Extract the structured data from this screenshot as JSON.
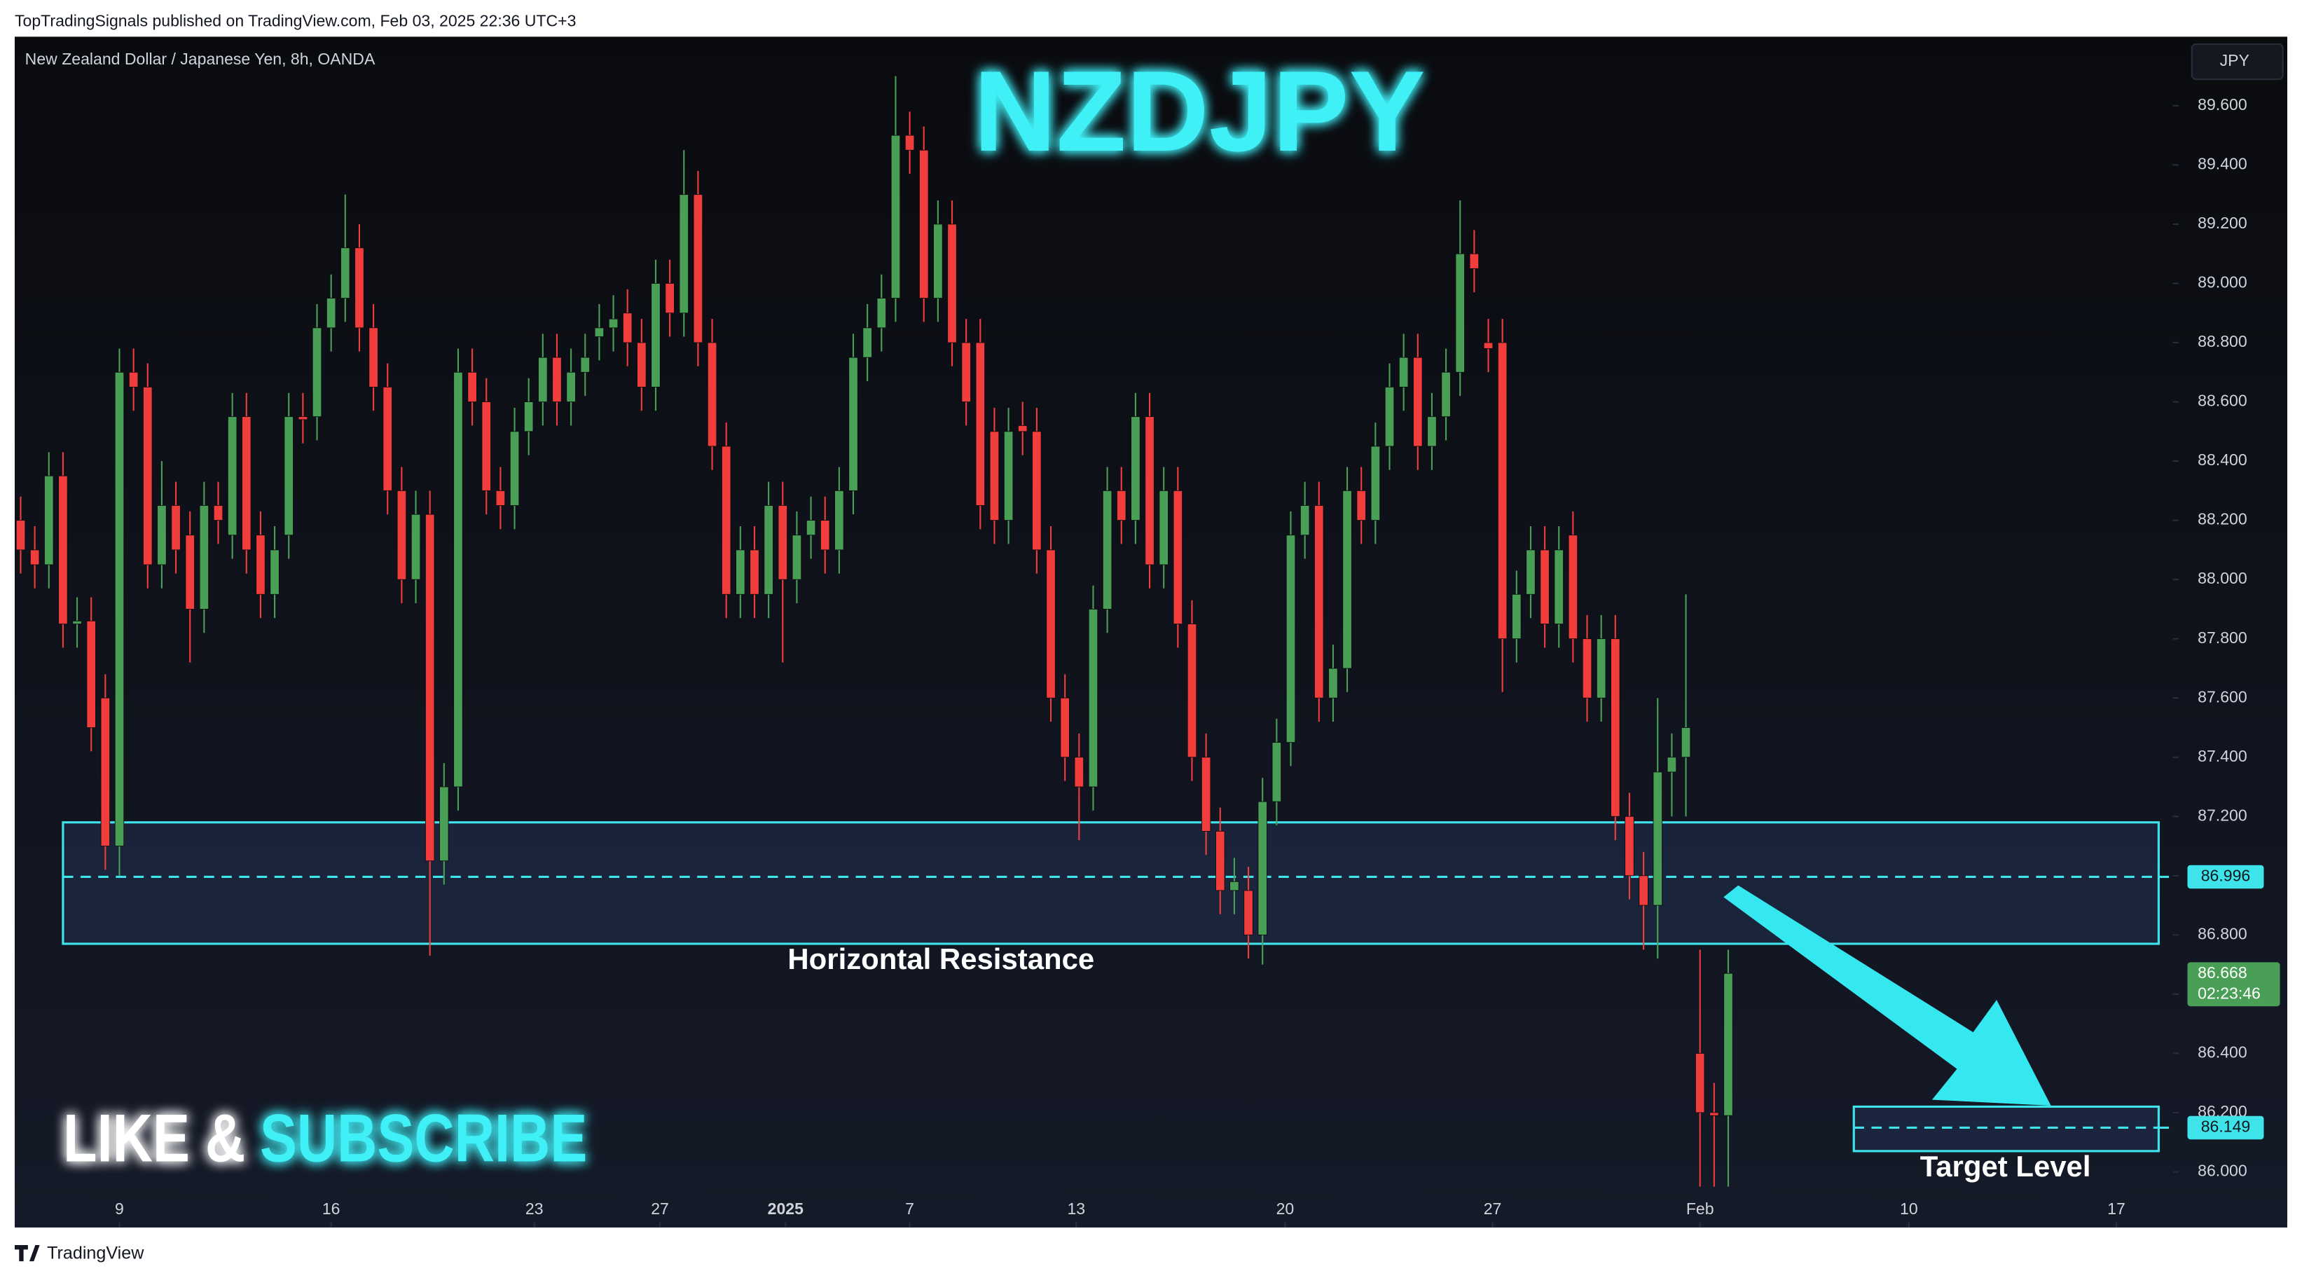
{
  "header": "TopTradingSignals published on TradingView.com, Feb 03, 2025 22:36 UTC+3",
  "footer": "TradingView",
  "chart_data": {
    "type": "candlestick",
    "title": "NZDJPY",
    "subtitle": "New Zealand Dollar / Japanese Yen, 8h, OANDA",
    "currency": "JPY",
    "annotations": [
      "LIKE &",
      "SUBSCRIBE"
    ],
    "up_color": "#4a9f57",
    "down_color": "#f23d3d",
    "zone_color": "#3fe4ea",
    "open": [
      88.2,
      88.1,
      88.05,
      88.35,
      87.85,
      87.86,
      87.6,
      87.1,
      88.7,
      88.65,
      88.05,
      88.25,
      88.15,
      87.9,
      88.25,
      88.15,
      88.55,
      88.15,
      87.95,
      88.15,
      88.55,
      88.55,
      88.85,
      88.95,
      89.12,
      88.85,
      88.65,
      88.3,
      88.0,
      88.22,
      87.05,
      87.3,
      88.7,
      88.6,
      88.3,
      88.25,
      88.5,
      88.6,
      88.75,
      88.6,
      88.7,
      88.82,
      88.85,
      88.9,
      88.8,
      88.65,
      89.0,
      88.9,
      89.3,
      88.8,
      88.45,
      87.95,
      88.1,
      87.95,
      88.25,
      88.0,
      88.15,
      88.2,
      88.1,
      88.3,
      88.75,
      88.85,
      88.95,
      89.5,
      89.45,
      88.95,
      89.2,
      88.8,
      88.8,
      88.5,
      88.2,
      88.52,
      88.5,
      88.1,
      87.6,
      87.4,
      87.3,
      87.9,
      88.3,
      88.2,
      88.55,
      88.05,
      88.3,
      87.85,
      87.4,
      87.15,
      86.95,
      86.95,
      86.8,
      87.25,
      87.45,
      88.15,
      88.25,
      87.6,
      87.7,
      88.3,
      88.2,
      88.45,
      88.65,
      88.75,
      88.45,
      88.55,
      88.7,
      89.1,
      88.8,
      88.8,
      87.8,
      87.95,
      88.1,
      87.85,
      88.15,
      87.8,
      87.6,
      87.8,
      87.2,
      87.0,
      86.9,
      87.35,
      87.4,
      86.4,
      86.2,
      86.19
    ],
    "high": [
      88.28,
      88.18,
      88.43,
      88.43,
      87.94,
      87.94,
      87.68,
      88.78,
      88.78,
      88.73,
      88.4,
      88.33,
      88.23,
      88.33,
      88.33,
      88.63,
      88.63,
      88.23,
      88.18,
      88.63,
      88.63,
      88.93,
      89.03,
      89.3,
      89.2,
      88.93,
      88.73,
      88.38,
      88.3,
      88.3,
      87.38,
      88.78,
      88.78,
      88.68,
      88.38,
      88.58,
      88.68,
      88.83,
      88.83,
      88.78,
      88.83,
      88.93,
      88.96,
      88.98,
      88.88,
      89.08,
      89.08,
      89.45,
      89.38,
      88.88,
      88.53,
      88.18,
      88.18,
      88.33,
      88.33,
      88.23,
      88.28,
      88.28,
      88.38,
      88.83,
      88.93,
      89.03,
      89.7,
      89.58,
      89.53,
      89.28,
      89.28,
      88.88,
      88.88,
      88.58,
      88.58,
      88.6,
      88.58,
      88.18,
      87.68,
      87.48,
      87.98,
      88.38,
      88.38,
      88.63,
      88.63,
      88.38,
      88.38,
      87.93,
      87.48,
      87.23,
      87.06,
      87.03,
      87.33,
      87.53,
      88.23,
      88.33,
      88.33,
      87.78,
      88.38,
      88.38,
      88.53,
      88.73,
      88.83,
      88.83,
      88.63,
      88.78,
      89.28,
      89.18,
      88.88,
      88.88,
      88.03,
      88.18,
      88.18,
      88.18,
      88.23,
      87.88,
      87.88,
      87.88,
      87.28,
      87.08,
      87.6,
      87.48,
      87.95,
      86.75,
      86.3,
      86.75
    ],
    "low": [
      88.02,
      87.97,
      87.97,
      87.77,
      87.77,
      87.42,
      87.02,
      87.0,
      88.57,
      87.97,
      87.97,
      88.02,
      87.72,
      87.82,
      88.12,
      88.07,
      88.02,
      87.87,
      87.87,
      88.07,
      88.46,
      88.47,
      88.77,
      88.87,
      88.77,
      88.57,
      88.22,
      87.92,
      87.92,
      86.73,
      86.97,
      87.22,
      88.52,
      88.22,
      88.17,
      88.17,
      88.42,
      88.52,
      88.52,
      88.52,
      88.62,
      88.74,
      88.77,
      88.72,
      88.57,
      88.57,
      88.82,
      88.82,
      88.72,
      88.37,
      87.87,
      87.87,
      87.87,
      87.87,
      87.72,
      87.92,
      88.07,
      88.02,
      88.02,
      88.22,
      88.67,
      88.77,
      88.87,
      89.37,
      88.87,
      88.87,
      88.72,
      88.52,
      88.17,
      88.12,
      88.12,
      88.42,
      88.02,
      87.52,
      87.32,
      87.12,
      87.22,
      87.82,
      88.12,
      88.12,
      87.97,
      87.97,
      87.77,
      87.32,
      87.07,
      86.87,
      86.87,
      86.72,
      86.7,
      87.17,
      87.37,
      88.07,
      87.52,
      87.52,
      87.62,
      88.12,
      88.12,
      88.37,
      88.57,
      88.37,
      88.37,
      88.47,
      88.62,
      88.97,
      88.7,
      87.62,
      87.72,
      87.87,
      87.77,
      87.77,
      87.72,
      87.52,
      87.52,
      87.12,
      86.92,
      86.75,
      86.72,
      87.2,
      87.2,
      85.95,
      85.95,
      85.95
    ],
    "close": [
      88.1,
      88.05,
      88.35,
      87.85,
      87.86,
      87.5,
      87.1,
      88.7,
      88.65,
      88.05,
      88.25,
      88.1,
      87.9,
      88.25,
      88.2,
      88.55,
      88.1,
      87.95,
      88.1,
      88.55,
      88.54,
      88.85,
      88.95,
      89.12,
      88.85,
      88.65,
      88.3,
      88.0,
      88.22,
      87.05,
      87.3,
      88.7,
      88.6,
      88.3,
      88.25,
      88.5,
      88.6,
      88.75,
      88.6,
      88.7,
      88.75,
      88.85,
      88.88,
      88.8,
      88.65,
      89.0,
      88.9,
      89.3,
      88.8,
      88.45,
      87.95,
      88.1,
      87.95,
      88.25,
      88.0,
      88.15,
      88.2,
      88.1,
      88.3,
      88.75,
      88.85,
      88.95,
      89.5,
      89.45,
      88.95,
      89.2,
      88.8,
      88.6,
      88.25,
      88.2,
      88.5,
      88.5,
      88.1,
      87.6,
      87.4,
      87.3,
      87.9,
      88.3,
      88.2,
      88.55,
      88.05,
      88.3,
      87.85,
      87.4,
      87.15,
      86.95,
      86.98,
      86.8,
      87.25,
      87.45,
      88.15,
      88.25,
      87.6,
      87.7,
      88.3,
      88.2,
      88.45,
      88.65,
      88.75,
      88.45,
      88.55,
      88.7,
      89.1,
      89.05,
      88.78,
      87.8,
      87.95,
      88.1,
      87.85,
      88.1,
      87.8,
      87.6,
      87.8,
      87.2,
      87.0,
      86.9,
      87.35,
      87.4,
      87.5,
      86.2,
      86.19,
      86.67
    ],
    "xlim": [
      -0.42,
      152.5
    ],
    "xticks": [
      {
        "value": 7,
        "label": "9"
      },
      {
        "value": 22,
        "label": "16"
      },
      {
        "value": 36.4,
        "label": "23"
      },
      {
        "value": 45.3,
        "label": "27"
      },
      {
        "value": 54.2,
        "label": "2025"
      },
      {
        "value": 63,
        "label": "7"
      },
      {
        "value": 74.8,
        "label": "13"
      },
      {
        "value": 89.6,
        "label": "20"
      },
      {
        "value": 104.3,
        "label": "27"
      },
      {
        "value": 119,
        "label": "Feb"
      },
      {
        "value": 133.8,
        "label": "10"
      },
      {
        "value": 148.5,
        "label": "17"
      }
    ],
    "ylim": [
      85.812,
      89.833
    ],
    "yticks": [
      {
        "value": 86.0,
        "label": "86.000"
      },
      {
        "value": 86.2,
        "label": "86.200"
      },
      {
        "value": 86.4,
        "label": "86.400"
      },
      {
        "value": 86.6,
        "label": "86.600"
      },
      {
        "value": 86.8,
        "label": "86.800"
      },
      {
        "value": 87.0,
        "label": "87.000"
      },
      {
        "value": 87.2,
        "label": "87.200"
      },
      {
        "value": 87.4,
        "label": "87.400"
      },
      {
        "value": 87.6,
        "label": "87.600"
      },
      {
        "value": 87.8,
        "label": "87.800"
      },
      {
        "value": 88.0,
        "label": "88.000"
      },
      {
        "value": 88.2,
        "label": "88.200"
      },
      {
        "value": 88.4,
        "label": "88.400"
      },
      {
        "value": 88.6,
        "label": "88.600"
      },
      {
        "value": 88.8,
        "label": "88.800"
      },
      {
        "value": 89.0,
        "label": "89.000"
      },
      {
        "value": 89.2,
        "label": "89.200"
      },
      {
        "value": 89.4,
        "label": "89.400"
      },
      {
        "value": 89.6,
        "label": "89.600"
      }
    ],
    "zones": [
      {
        "label": "Horizontal Resistance",
        "top": 87.18,
        "bottom": 86.77,
        "level": 86.996,
        "start": 3,
        "end": 151.5
      },
      {
        "label": "Target Level",
        "top": 86.22,
        "bottom": 86.07,
        "level": 86.149,
        "start": 129.9,
        "end": 151.5
      }
    ],
    "last_price": {
      "value": 86.668,
      "countdown": "02:23:46"
    }
  }
}
